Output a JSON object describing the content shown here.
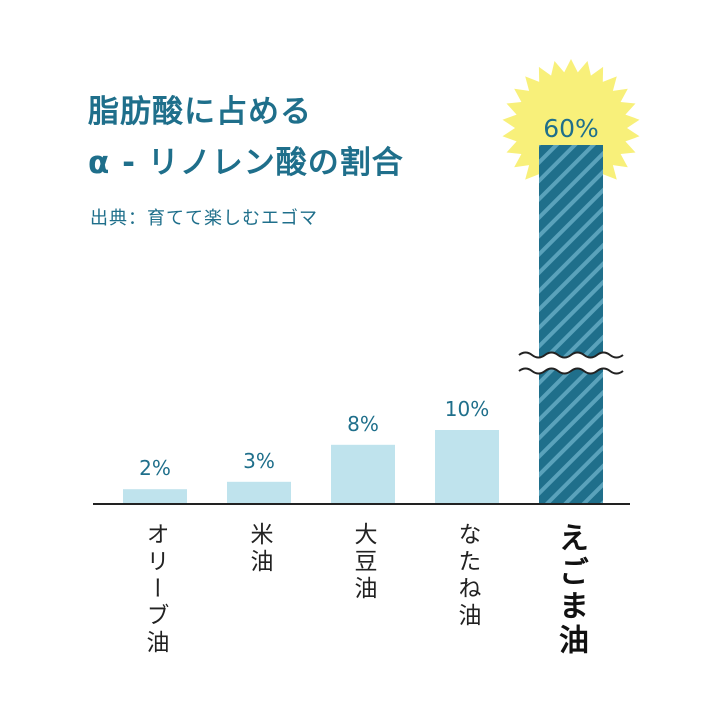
{
  "title_line1": "脂肪酸に占める",
  "title_line2": "α - リノレン酸の割合",
  "source": "出典：育てて楽しむエゴマ",
  "colors": {
    "title": "#1f6f8b",
    "bar": "#bfe3ed",
    "highlight_bar": "#1f6f8b",
    "highlight_stripe": "#5aa2bb",
    "sun": "#f8f07a",
    "value_label": "#1f6f8b"
  },
  "chart_data": {
    "type": "bar",
    "title": "脂肪酸に占める α - リノレン酸の割合",
    "categories": [
      "オリーブ油",
      "米油",
      "大豆油",
      "なたね油",
      "えごま油"
    ],
    "values": [
      2,
      3,
      8,
      10,
      60
    ],
    "value_labels": [
      "2%",
      "3%",
      "8%",
      "10%",
      "60%"
    ],
    "unit": "%",
    "highlight_index": 4,
    "axis_break_on_highlight": true,
    "xlabel": "",
    "ylabel": "",
    "ylim": [
      0,
      60
    ],
    "grid": false
  }
}
